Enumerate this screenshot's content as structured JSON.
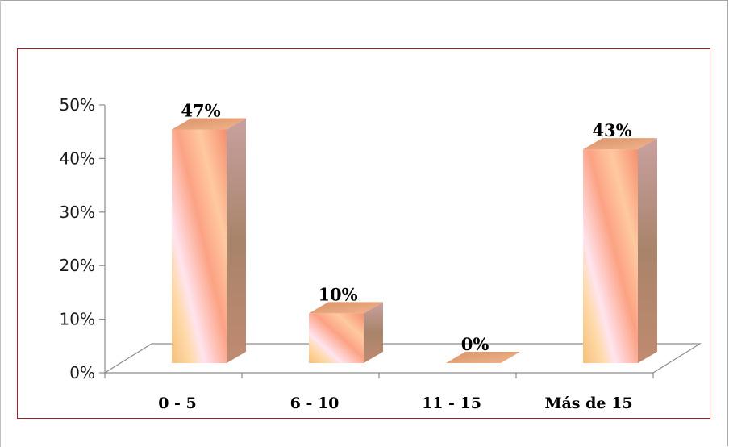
{
  "chart_data": {
    "type": "bar",
    "categories": [
      "0 - 5",
      "6 - 10",
      "11 - 15",
      "Más de 15"
    ],
    "values": [
      47,
      10,
      0,
      43
    ],
    "data_labels": [
      "47%",
      "10%",
      "0%",
      "43%"
    ],
    "y_ticks": [
      "0%",
      "10%",
      "20%",
      "30%",
      "40%",
      "50%"
    ],
    "ylim": [
      0,
      50
    ],
    "style": "3d-column",
    "grid": false,
    "legend": "none",
    "colors": {
      "bar_gradient": [
        "#f5c07a",
        "#fb9f7e",
        "#ffe0ea",
        "#f6a87d",
        "#b97c65"
      ],
      "frame": "#a02020"
    }
  }
}
